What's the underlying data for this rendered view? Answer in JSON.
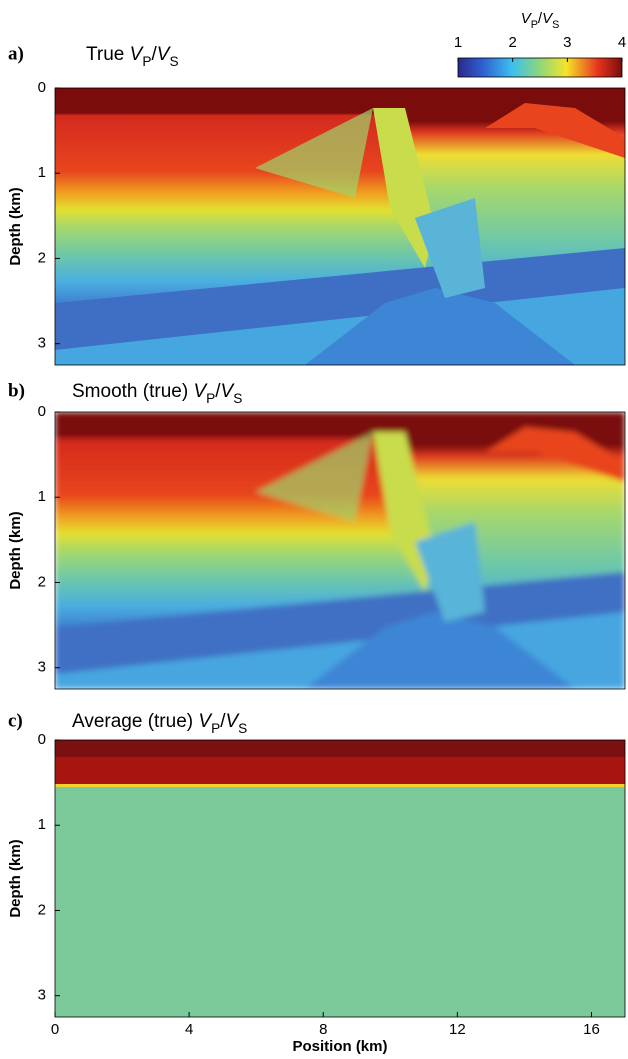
{
  "colorbar": {
    "label": [
      "V",
      "P",
      "/",
      "V",
      "S"
    ],
    "lim": [
      1,
      4
    ],
    "ticks": [
      1,
      2,
      3,
      4
    ]
  },
  "chart_data": [
    {
      "type": "heatmap",
      "panel_label": "a)",
      "title": "True",
      "title_symbol": [
        "V",
        "P",
        "/",
        "V",
        "S"
      ],
      "ylabel": "Depth (km)",
      "ylim": [
        0,
        3.25
      ],
      "yticks": [
        0,
        1,
        2,
        3
      ]
    },
    {
      "type": "heatmap",
      "panel_label": "b)",
      "title": "Smooth (true)",
      "title_symbol": [
        "V",
        "P",
        "/",
        "V",
        "S"
      ],
      "ylabel": "Depth (km)",
      "ylim": [
        0,
        3.25
      ],
      "yticks": [
        0,
        1,
        2,
        3
      ]
    },
    {
      "type": "heatmap",
      "panel_label": "c)",
      "title": "Average (true)",
      "title_symbol": [
        "V",
        "P",
        "/",
        "V",
        "S"
      ],
      "ylabel": "Depth (km)",
      "ylim": [
        0,
        3.25
      ],
      "yticks": [
        0,
        1,
        2,
        3
      ],
      "xlabel": "Position (km)",
      "xlim": [
        0,
        17
      ],
      "xticks": [
        0,
        4,
        8,
        12,
        16
      ]
    }
  ]
}
